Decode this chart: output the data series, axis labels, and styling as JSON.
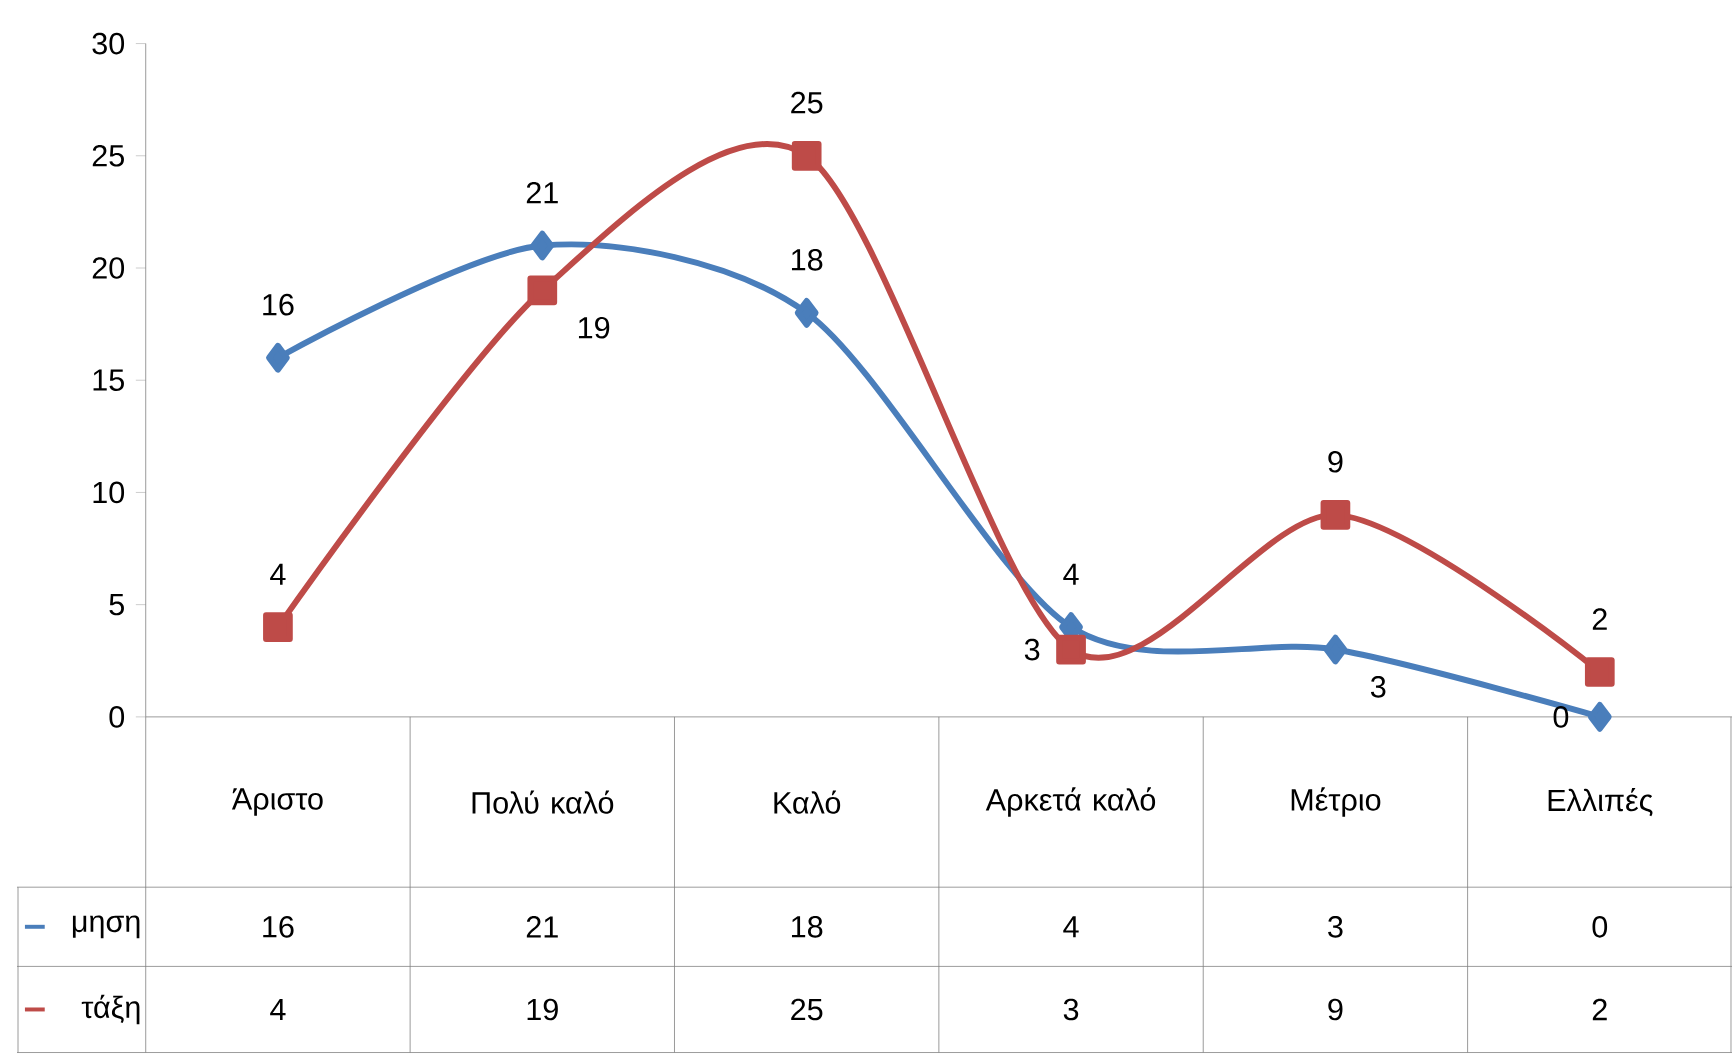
{
  "chart_data": {
    "type": "line",
    "categories": [
      "Άριστο",
      "Πολύ καλό",
      "Καλό",
      "Αρκετά καλό",
      "Μέτριο",
      "Ελλιπές"
    ],
    "series": [
      {
        "name": "μηση",
        "color": "#4a7ebb",
        "marker": "diamond",
        "values": [
          16,
          21,
          18,
          4,
          3,
          0
        ]
      },
      {
        "name": "τάξη",
        "color": "#be4b48",
        "marker": "square",
        "values": [
          4,
          19,
          25,
          3,
          9,
          2
        ]
      }
    ],
    "annotations": [
      {
        "text": "16",
        "x": "Άριστο",
        "y": 16
      },
      {
        "text": "21",
        "x": "Πολύ καλό",
        "y": 21
      },
      {
        "text": "18",
        "x": "Καλό",
        "y": 18
      },
      {
        "text": "4",
        "x": "Αρκετά καλό",
        "y": 4
      },
      {
        "text": "3",
        "x": "Μέτριο",
        "y": 3
      },
      {
        "text": "0",
        "x": "Ελλιπές",
        "y": 0
      },
      {
        "text": "4",
        "x": "Άριστο",
        "y": 4
      },
      {
        "text": "19",
        "x": "Πολύ καλό",
        "y": 19
      },
      {
        "text": "25",
        "x": "Καλό",
        "y": 25
      },
      {
        "text": "3",
        "x": "Αρκετά καλό",
        "y": 3
      },
      {
        "text": "9",
        "x": "Μέτριο",
        "y": 9
      },
      {
        "text": "2",
        "x": "Ελλιπές",
        "y": 2
      }
    ],
    "ylim": [
      0,
      30
    ],
    "yticks": [
      0,
      5,
      10,
      15,
      20,
      25,
      30
    ],
    "data_labels": true,
    "legend": "bottom",
    "grid": false
  }
}
